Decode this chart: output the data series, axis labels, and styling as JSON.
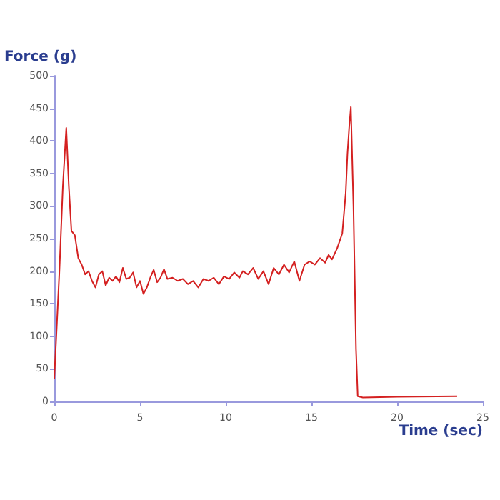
{
  "chart_data": {
    "type": "line",
    "xlabel": "Time (sec)",
    "ylabel": "Force (g)",
    "xlim": [
      0,
      25
    ],
    "ylim": [
      0,
      500
    ],
    "xticks": [
      0,
      5,
      10,
      15,
      20,
      25
    ],
    "yticks": [
      0,
      50,
      100,
      150,
      200,
      250,
      300,
      350,
      400,
      450,
      500
    ],
    "grid": false,
    "marker": "none",
    "line_style": "solid",
    "series": [
      {
        "color": "#d42020",
        "x": [
          0,
          0.3,
          0.5,
          0.7,
          0.85,
          1.0,
          1.2,
          1.4,
          1.6,
          1.8,
          2.0,
          2.2,
          2.4,
          2.6,
          2.8,
          3.0,
          3.2,
          3.4,
          3.6,
          3.8,
          4.0,
          4.2,
          4.4,
          4.6,
          4.8,
          5.0,
          5.2,
          5.4,
          5.6,
          5.8,
          6.0,
          6.2,
          6.4,
          6.6,
          6.9,
          7.2,
          7.5,
          7.8,
          8.1,
          8.4,
          8.7,
          9.0,
          9.3,
          9.6,
          9.9,
          10.2,
          10.5,
          10.8,
          11.0,
          11.3,
          11.6,
          11.9,
          12.2,
          12.5,
          12.8,
          13.1,
          13.4,
          13.7,
          14.0,
          14.3,
          14.6,
          14.9,
          15.2,
          15.5,
          15.8,
          16.0,
          16.2,
          16.5,
          16.8,
          17.0,
          17.1,
          17.2,
          17.3,
          17.45,
          17.6,
          17.7,
          18,
          20,
          23.5
        ],
        "values": [
          35,
          200,
          330,
          420,
          330,
          262,
          255,
          220,
          210,
          195,
          200,
          185,
          175,
          195,
          200,
          178,
          190,
          185,
          192,
          183,
          205,
          188,
          190,
          198,
          175,
          185,
          165,
          175,
          190,
          202,
          183,
          190,
          203,
          188,
          190,
          185,
          188,
          180,
          185,
          175,
          188,
          185,
          190,
          180,
          192,
          188,
          198,
          190,
          200,
          195,
          205,
          188,
          200,
          180,
          205,
          195,
          210,
          198,
          215,
          185,
          210,
          215,
          210,
          220,
          213,
          225,
          218,
          235,
          258,
          320,
          380,
          420,
          452,
          300,
          80,
          8,
          6,
          7,
          8
        ]
      }
    ]
  }
}
